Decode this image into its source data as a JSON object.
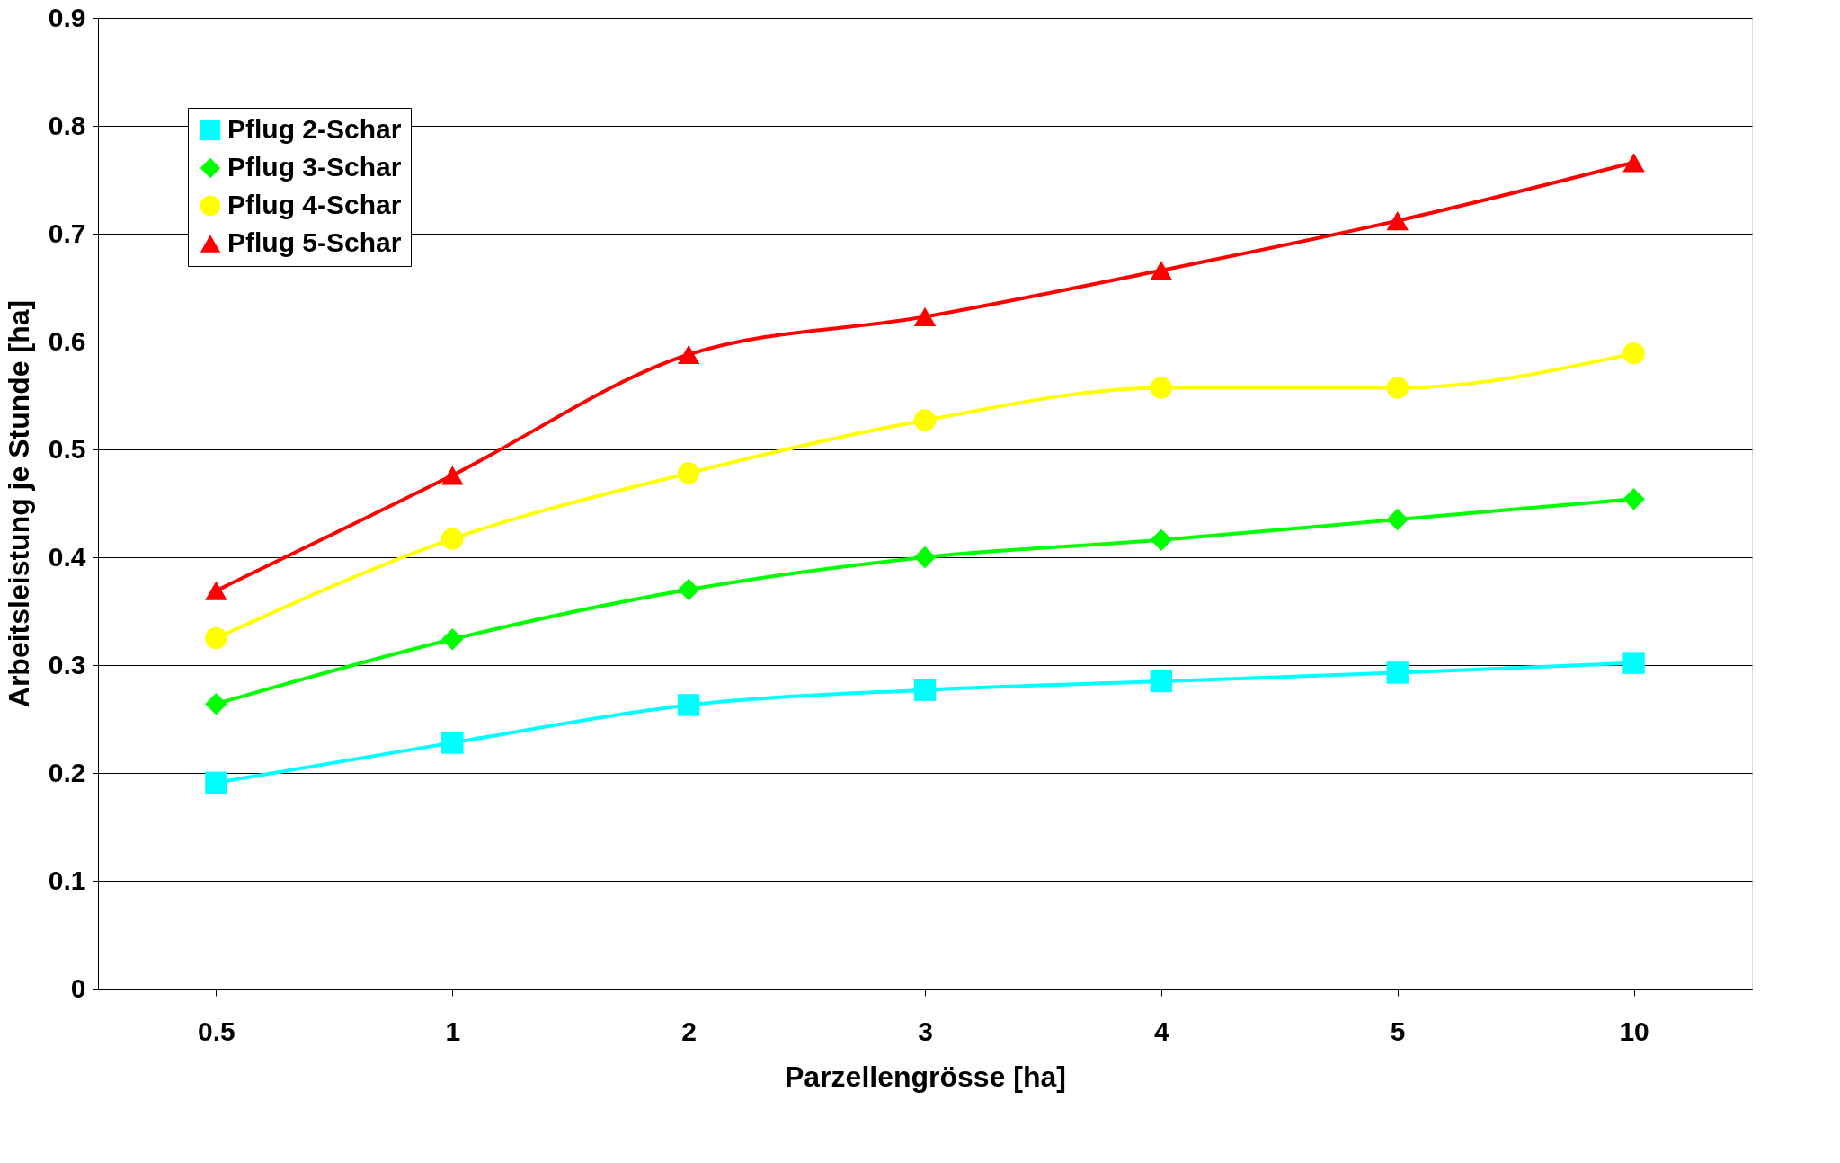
{
  "chart_data": {
    "type": "line",
    "xlabel": "Parzellengrösse [ha]",
    "ylabel": "Arbeitsleistung je Stunde [ha]",
    "categories": [
      "0.5",
      "1",
      "2",
      "3",
      "4",
      "5",
      "10"
    ],
    "ylim": [
      0,
      0.9
    ],
    "yticks": [
      0,
      0.1,
      0.2,
      0.3,
      0.4,
      0.5,
      0.6,
      0.7,
      0.8,
      0.9
    ],
    "grid": "y",
    "legend": "top left",
    "line_style": "solid",
    "series": [
      {
        "name": "Pflug 2-Schar",
        "color": "#00ffff",
        "marker": "square",
        "values": [
          0.191,
          0.228,
          0.263,
          0.277,
          0.285,
          0.293,
          0.302
        ]
      },
      {
        "name": "Pflug 3-Schar",
        "color": "#00ff00",
        "marker": "diamond",
        "values": [
          0.264,
          0.324,
          0.37,
          0.4,
          0.416,
          0.435,
          0.454
        ]
      },
      {
        "name": "Pflug 4-Schar",
        "color": "#ffff00",
        "marker": "circle",
        "values": [
          0.325,
          0.417,
          0.478,
          0.527,
          0.557,
          0.557,
          0.589
        ]
      },
      {
        "name": "Pflug 5-Schar",
        "color": "#ff0000",
        "marker": "triangle",
        "values": [
          0.369,
          0.476,
          0.588,
          0.623,
          0.666,
          0.712,
          0.766
        ]
      }
    ]
  }
}
